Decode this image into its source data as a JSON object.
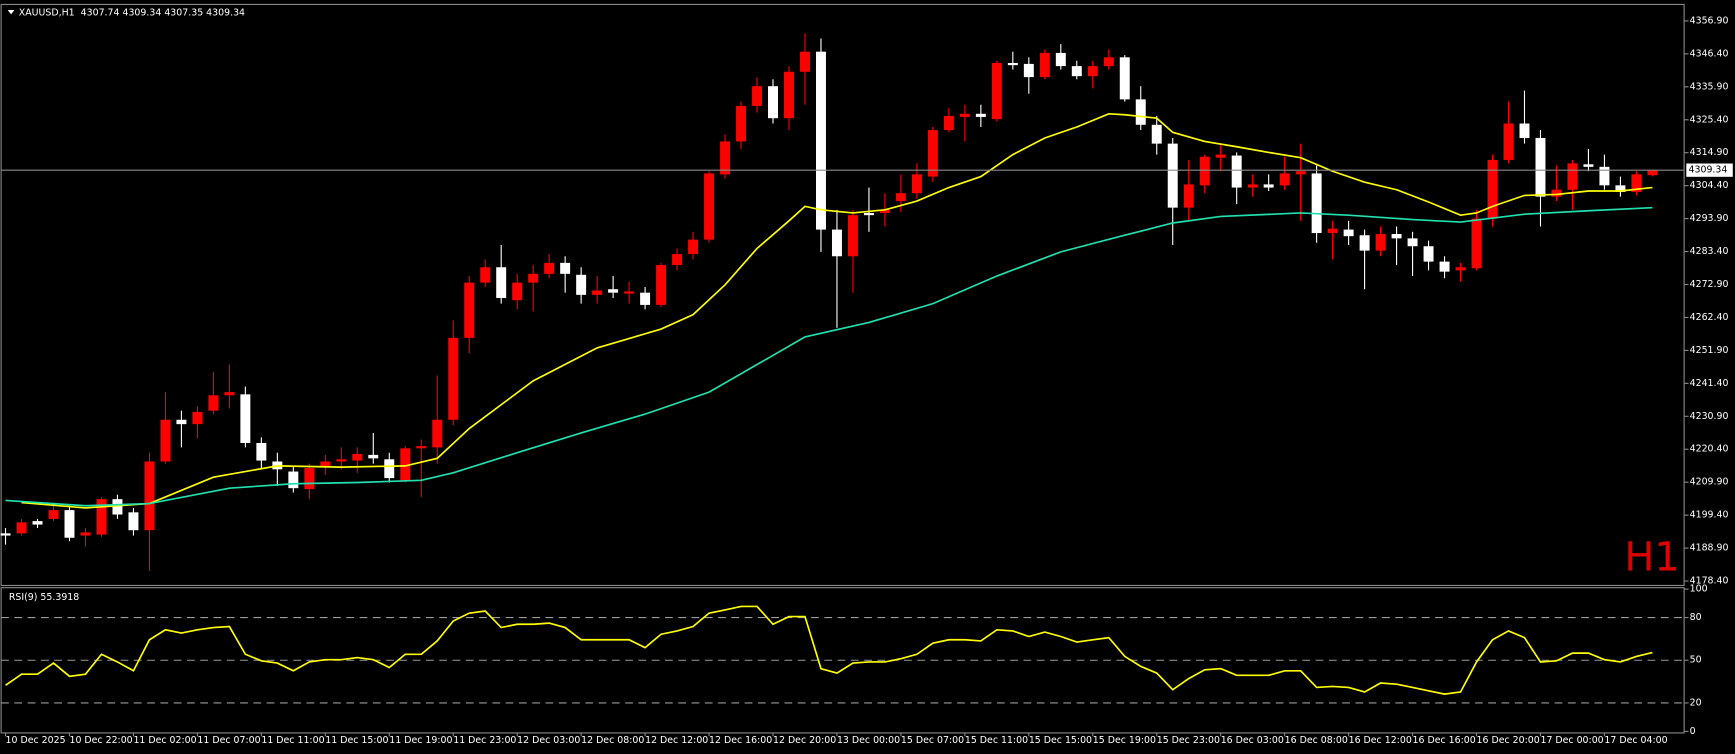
{
  "chart_data": [
    {
      "type": "candlestick",
      "title": "XAUUSD,H1  4307.74 4309.34 4307.35 4309.34",
      "annotation": "H1",
      "categories": [
        "10 Dec 2025",
        null,
        null,
        null,
        "10 Dec 22:00",
        null,
        null,
        null,
        "11 Dec 02:00",
        null,
        null,
        null,
        "11 Dec 07:00",
        null,
        null,
        null,
        "11 Dec 11:00",
        null,
        null,
        null,
        "11 Dec 15:00",
        null,
        null,
        null,
        "11 Dec 19:00",
        null,
        null,
        null,
        "11 Dec 23:00",
        null,
        null,
        null,
        "12 Dec 03:00",
        null,
        null,
        null,
        "12 Dec 08:00",
        null,
        null,
        null,
        "12 Dec 12:00",
        null,
        null,
        null,
        "12 Dec 16:00",
        null,
        null,
        null,
        "12 Dec 20:00",
        null,
        null,
        null,
        "13 Dec 00:00",
        null,
        null,
        null,
        "15 Dec 07:00",
        null,
        null,
        null,
        "15 Dec 11:00",
        null,
        null,
        null,
        "15 Dec 15:00",
        null,
        null,
        null,
        "15 Dec 19:00",
        null,
        null,
        null,
        "15 Dec 23:00",
        null,
        null,
        null,
        "16 Dec 03:00",
        null,
        null,
        null,
        "16 Dec 08:00",
        null,
        null,
        null,
        "16 Dec 12:00",
        null,
        null,
        null,
        "16 Dec 16:00",
        null,
        null,
        null,
        "16 Dec 20:00",
        null,
        null,
        null,
        "17 Dec 00:00",
        null,
        null,
        null,
        "17 Dec 04:00",
        null,
        null,
        null
      ],
      "open": [
        4193.6,
        4193.6,
        4197.5,
        4198.2,
        4201.0,
        4192.9,
        4193.2,
        4204.5,
        4200.3,
        4194.6,
        4216.5,
        4229.8,
        4228.4,
        4232.7,
        4237.6,
        4237.9,
        4222.4,
        4216.5,
        4213.3,
        4207.7,
        4215.1,
        4216.5,
        4216.8,
        4218.6,
        4217.2,
        4210.5,
        4220.7,
        4221.0,
        4229.8,
        4255.9,
        4273.5,
        4278.4,
        4267.9,
        4273.5,
        4276.3,
        4279.8,
        4276.0,
        4269.6,
        4271.4,
        4270.0,
        4270.3,
        4266.4,
        4279.1,
        4282.6,
        4287.2,
        4308.0,
        4318.5,
        4329.8,
        4336.1,
        4325.9,
        4340.7,
        4347.1,
        4290.4,
        4281.9,
        4295.7,
        4295.7,
        4299.5,
        4302.0,
        4307.3,
        4322.1,
        4326.3,
        4327.3,
        4325.6,
        4343.5,
        4343.2,
        4339.0,
        4346.7,
        4342.5,
        4339.3,
        4342.5,
        4345.3,
        4331.9,
        4323.8,
        4317.8,
        4297.4,
        4304.5,
        4313.3,
        4314.0,
        4303.8,
        4304.8,
        4304.5,
        4308.0,
        4308.3,
        4289.3,
        4290.4,
        4288.6,
        4283.7,
        4289.0,
        4287.6,
        4285.1,
        4280.2,
        4277.4,
        4278.1,
        4293.9,
        4312.6,
        4324.2,
        4319.6,
        4300.9,
        4303.1,
        4311.2,
        4310.4,
        4304.5,
        4302.4,
        4307.74
      ],
      "high": [
        4195.3,
        4198.2,
        4198.2,
        4203.4,
        4202.4,
        4195.3,
        4205.2,
        4205.9,
        4201.7,
        4219.3,
        4238.6,
        4232.7,
        4234.1,
        4245.0,
        4247.4,
        4240.4,
        4224.2,
        4219.3,
        4215.1,
        4215.8,
        4218.6,
        4221.0,
        4221.0,
        4225.6,
        4219.3,
        4221.4,
        4223.5,
        4243.9,
        4261.5,
        4275.6,
        4280.9,
        4285.5,
        4276.3,
        4279.1,
        4282.6,
        4281.9,
        4278.4,
        4275.6,
        4275.6,
        4273.8,
        4272.1,
        4279.8,
        4284.4,
        4289.7,
        4309.0,
        4320.7,
        4331.2,
        4339.0,
        4338.3,
        4342.5,
        4353.0,
        4351.3,
        4296.7,
        4296.7,
        4303.8,
        4302.0,
        4308.0,
        4311.5,
        4323.1,
        4329.1,
        4330.2,
        4330.2,
        4344.2,
        4347.1,
        4345.3,
        4347.8,
        4349.5,
        4344.2,
        4344.2,
        4347.8,
        4346.0,
        4336.1,
        4326.6,
        4319.6,
        4312.6,
        4314.3,
        4317.8,
        4315.0,
        4308.0,
        4308.0,
        4313.6,
        4317.8,
        4310.8,
        4293.2,
        4293.2,
        4290.4,
        4291.4,
        4291.4,
        4289.7,
        4286.9,
        4281.9,
        4279.8,
        4296.7,
        4314.3,
        4331.2,
        4334.7,
        4322.1,
        4310.8,
        4312.6,
        4316.1,
        4314.3,
        4307.3,
        4309.0,
        4309.34
      ],
      "low": [
        4190.0,
        4192.9,
        4195.3,
        4197.5,
        4191.1,
        4189.4,
        4192.5,
        4198.2,
        4192.9,
        4181.6,
        4215.8,
        4221.0,
        4223.9,
        4231.6,
        4233.4,
        4221.0,
        4214.0,
        4208.7,
        4206.6,
        4204.5,
        4212.2,
        4214.0,
        4212.9,
        4215.8,
        4209.8,
        4209.8,
        4205.2,
        4215.8,
        4228.1,
        4251.0,
        4272.1,
        4266.8,
        4265.0,
        4264.3,
        4274.9,
        4270.3,
        4266.8,
        4266.8,
        4268.6,
        4266.8,
        4265.0,
        4265.7,
        4277.4,
        4280.9,
        4286.2,
        4306.6,
        4316.1,
        4327.7,
        4324.2,
        4322.1,
        4330.2,
        4283.3,
        4259.1,
        4270.3,
        4289.7,
        4291.4,
        4296.0,
        4300.2,
        4305.5,
        4321.4,
        4318.5,
        4323.1,
        4324.9,
        4341.4,
        4333.7,
        4338.3,
        4341.4,
        4338.3,
        4335.4,
        4341.4,
        4331.2,
        4322.1,
        4314.3,
        4285.5,
        4293.2,
        4302.0,
        4309.0,
        4298.5,
        4300.9,
        4302.7,
        4303.1,
        4293.2,
        4286.2,
        4280.9,
        4285.5,
        4271.4,
        4281.9,
        4279.1,
        4275.6,
        4277.4,
        4274.9,
        4273.8,
        4277.4,
        4291.4,
        4311.5,
        4317.8,
        4291.4,
        4299.5,
        4296.7,
        4309.0,
        4303.1,
        4300.9,
        4301.3,
        4307.35
      ],
      "close": [
        4192.9,
        4197.1,
        4196.4,
        4201.0,
        4192.2,
        4193.9,
        4204.5,
        4199.6,
        4194.6,
        4216.5,
        4229.8,
        4228.4,
        4232.3,
        4237.6,
        4238.6,
        4222.4,
        4216.8,
        4214.0,
        4208.0,
        4214.4,
        4216.5,
        4217.2,
        4218.9,
        4217.5,
        4211.2,
        4220.7,
        4221.4,
        4229.8,
        4255.9,
        4273.5,
        4278.4,
        4268.6,
        4273.5,
        4276.3,
        4279.8,
        4276.3,
        4269.6,
        4271.0,
        4270.3,
        4270.7,
        4266.4,
        4279.1,
        4282.6,
        4287.2,
        4308.3,
        4318.5,
        4329.8,
        4336.1,
        4325.9,
        4340.7,
        4347.1,
        4290.4,
        4281.9,
        4295.0,
        4295.0,
        4296.7,
        4302.0,
        4308.0,
        4322.1,
        4326.6,
        4327.3,
        4326.3,
        4343.5,
        4342.8,
        4339.0,
        4346.7,
        4342.5,
        4339.3,
        4342.5,
        4345.3,
        4331.9,
        4323.8,
        4317.8,
        4297.4,
        4304.8,
        4313.6,
        4314.3,
        4303.8,
        4304.8,
        4303.8,
        4308.3,
        4309.0,
        4289.3,
        4290.7,
        4288.3,
        4283.7,
        4289.0,
        4287.6,
        4285.1,
        4280.2,
        4277.0,
        4278.4,
        4293.9,
        4312.6,
        4324.2,
        4319.6,
        4300.9,
        4303.1,
        4311.5,
        4310.4,
        4304.5,
        4302.4,
        4308.0,
        4309.34
      ],
      "up_color": "#ff0000",
      "down_color": "#ffffff",
      "series": [
        {
          "color": "#ffff00",
          "x": [
            1,
            5,
            9,
            13,
            17,
            21,
            25,
            27,
            29,
            33,
            37,
            41,
            43,
            45,
            47,
            49,
            50,
            51,
            53,
            55,
            57,
            59,
            61,
            63,
            65,
            67,
            69,
            70,
            72,
            73,
            75,
            77,
            79,
            81,
            83,
            85,
            87,
            89,
            91,
            92,
            93,
            95,
            97,
            99,
            101,
            103
          ],
          "values": [
            4203.4,
            4201.7,
            4203.1,
            4211.5,
            4215.1,
            4214.7,
            4215.1,
            4217.5,
            4227.0,
            4242.2,
            4252.7,
            4258.7,
            4263.3,
            4272.8,
            4284.4,
            4293.2,
            4297.8,
            4296.7,
            4295.7,
            4296.7,
            4299.5,
            4303.8,
            4307.3,
            4314.3,
            4319.6,
            4323.1,
            4327.3,
            4327.0,
            4325.9,
            4321.4,
            4318.5,
            4316.8,
            4315.0,
            4313.3,
            4309.0,
            4305.5,
            4303.1,
            4299.2,
            4295.0,
            4295.7,
            4297.8,
            4301.3,
            4301.6,
            4302.7,
            4302.7,
            4303.8
          ]
        },
        {
          "color": "#20e0b0",
          "x": [
            0,
            5,
            9,
            14,
            18,
            22,
            26,
            28,
            32,
            36,
            40,
            44,
            47,
            50,
            54,
            58,
            62,
            66,
            70,
            73,
            76,
            81,
            84,
            88,
            91,
            95,
            99,
            103
          ],
          "values": [
            4204.1,
            4202.4,
            4203.1,
            4208.0,
            4209.4,
            4209.8,
            4210.5,
            4212.9,
            4219.3,
            4225.6,
            4231.6,
            4238.6,
            4247.4,
            4256.2,
            4260.8,
            4266.8,
            4275.6,
            4283.3,
            4288.6,
            4292.5,
            4294.6,
            4295.7,
            4295.0,
            4293.6,
            4292.8,
            4295.3,
            4296.4,
            4297.4
          ]
        }
      ],
      "last_price": {
        "value": 4309.34,
        "label": "4309.34"
      },
      "ylim": [
        4177.7,
        4361.8
      ],
      "yticks": [
        {
          "value": 4356.9,
          "label": "4356.90"
        },
        {
          "value": 4346.4,
          "label": "4346.40"
        },
        {
          "value": 4335.9,
          "label": "4335.90"
        },
        {
          "value": 4325.4,
          "label": "4325.40"
        },
        {
          "value": 4314.9,
          "label": "4314.90"
        },
        {
          "value": 4304.4,
          "label": "4304.40"
        },
        {
          "value": 4293.9,
          "label": "4293.90"
        },
        {
          "value": 4283.4,
          "label": "4283.40"
        },
        {
          "value": 4272.9,
          "label": "4272.90"
        },
        {
          "value": 4262.4,
          "label": "4262.40"
        },
        {
          "value": 4251.9,
          "label": "4251.90"
        },
        {
          "value": 4241.4,
          "label": "4241.40"
        },
        {
          "value": 4230.9,
          "label": "4230.90"
        },
        {
          "value": 4220.4,
          "label": "4220.40"
        },
        {
          "value": 4209.9,
          "label": "4209.90"
        },
        {
          "value": 4199.4,
          "label": "4199.40"
        },
        {
          "value": 4188.9,
          "label": "4188.90"
        },
        {
          "value": 4178.4,
          "label": "4178.40"
        }
      ]
    },
    {
      "type": "line",
      "title": "RSI(9) 55.3918",
      "color": "#ffff00",
      "values": [
        32.4,
        40.2,
        40.2,
        48.0,
        38.7,
        40.2,
        54.2,
        48.8,
        42.6,
        64.4,
        71.4,
        69.1,
        71.4,
        73.0,
        73.7,
        54.2,
        49.6,
        48.0,
        42.6,
        48.8,
        50.4,
        50.4,
        51.9,
        50.4,
        44.9,
        54.2,
        54.2,
        63.6,
        77.6,
        83.1,
        84.6,
        73.0,
        75.3,
        75.3,
        76.1,
        73.0,
        64.4,
        64.4,
        64.4,
        64.4,
        58.9,
        68.3,
        70.6,
        73.7,
        83.1,
        85.4,
        87.8,
        87.8,
        75.3,
        80.7,
        80.7,
        44.1,
        41.0,
        48.0,
        48.8,
        48.8,
        51.1,
        54.2,
        62.0,
        64.4,
        64.4,
        63.6,
        71.4,
        70.6,
        66.7,
        69.8,
        66.7,
        62.8,
        64.4,
        65.9,
        52.7,
        45.7,
        41.0,
        29.3,
        37.1,
        43.3,
        44.1,
        39.4,
        39.4,
        39.4,
        42.6,
        42.6,
        30.9,
        31.6,
        30.9,
        27.7,
        34.0,
        33.2,
        30.9,
        28.5,
        26.2,
        27.7,
        48.8,
        64.4,
        70.6,
        65.9,
        48.8,
        49.6,
        55.0,
        55.0,
        50.4,
        48.8,
        52.7,
        55.4
      ],
      "ylim": [
        0,
        100
      ],
      "yticks": [
        100,
        80,
        50,
        20,
        0
      ],
      "levels": [
        80,
        50,
        20
      ]
    }
  ]
}
